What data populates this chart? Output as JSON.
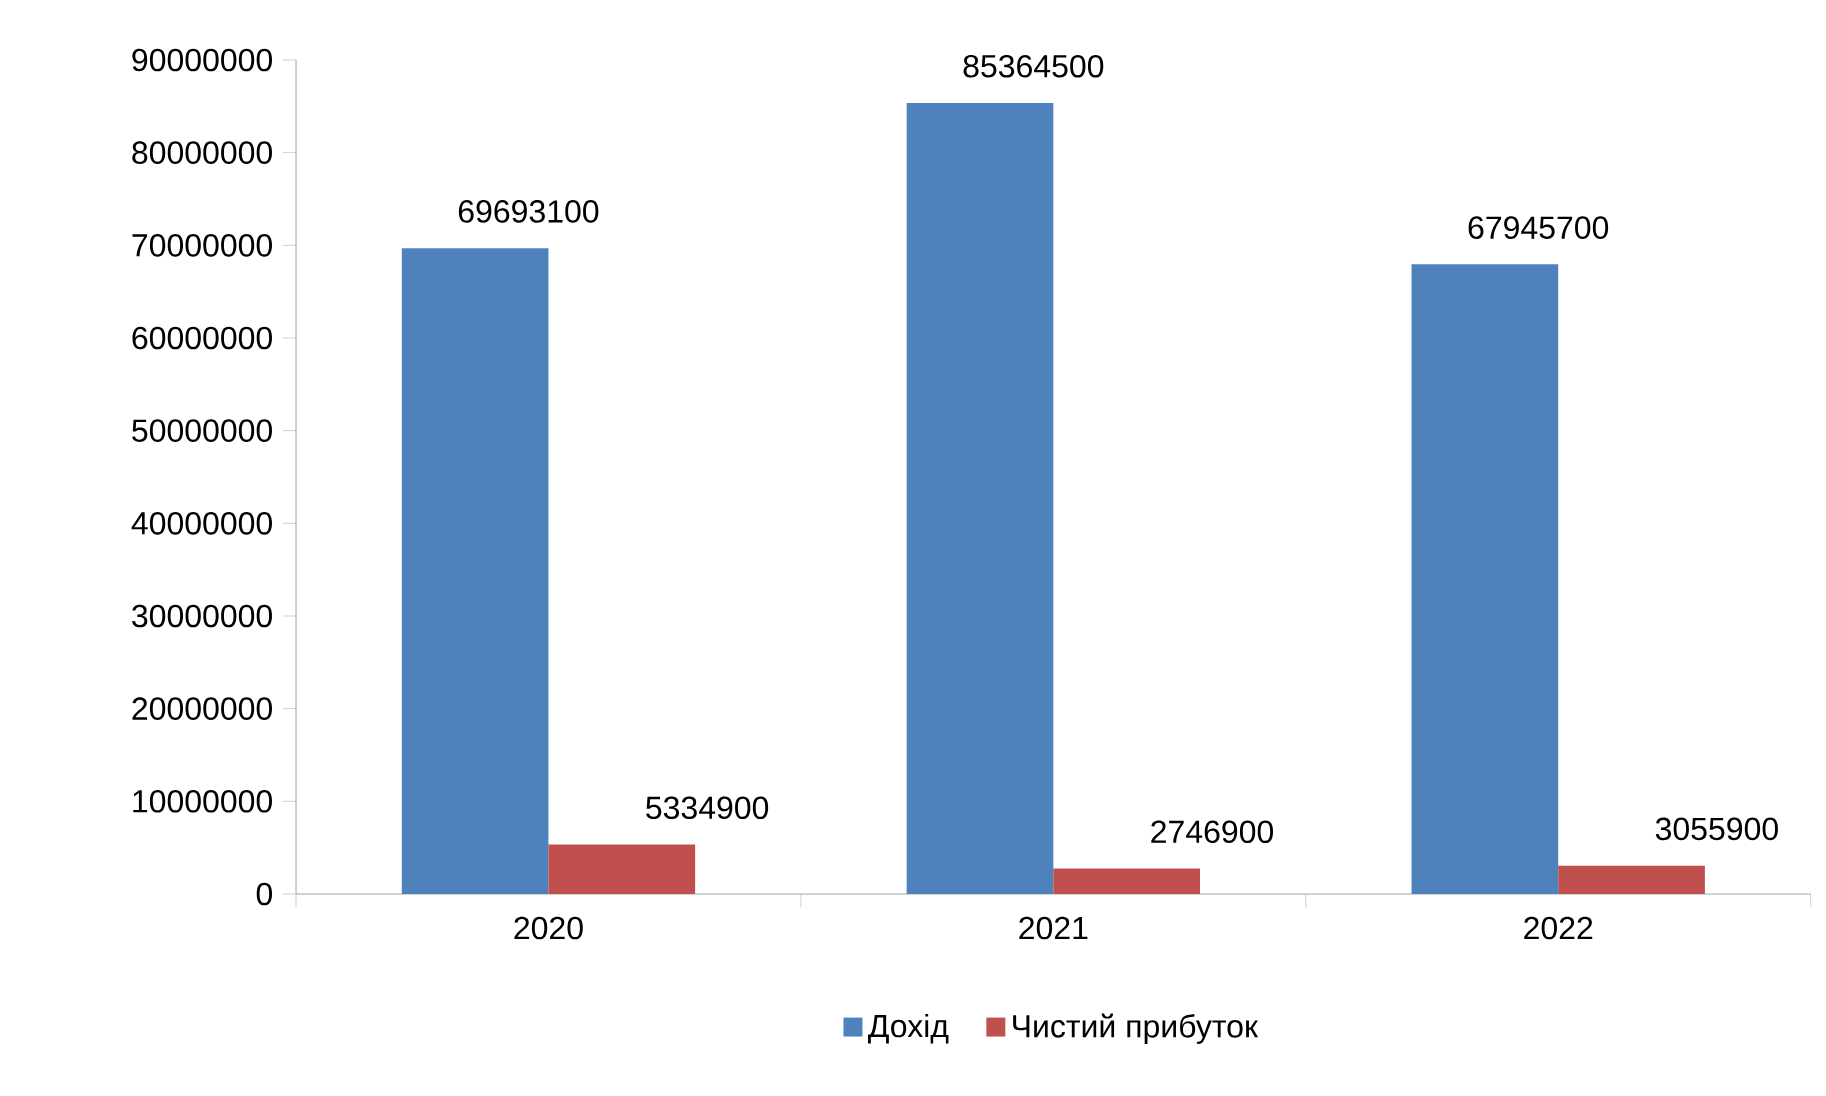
{
  "chart_data": {
    "type": "bar",
    "categories": [
      "2020",
      "2021",
      "2022"
    ],
    "series": [
      {
        "name": "Дохід",
        "color": "#4f81bd",
        "values": [
          69693100,
          85364500,
          67945700
        ]
      },
      {
        "name": "Чистий прибуток",
        "color": "#c0504d",
        "values": [
          5334900,
          2746900,
          3055900
        ]
      }
    ],
    "ylim": [
      0,
      90000000
    ],
    "yticks": [
      0,
      10000000,
      20000000,
      30000000,
      40000000,
      50000000,
      60000000,
      70000000,
      80000000,
      90000000
    ],
    "data_labels": true,
    "grid": false,
    "legend": "bottom"
  }
}
